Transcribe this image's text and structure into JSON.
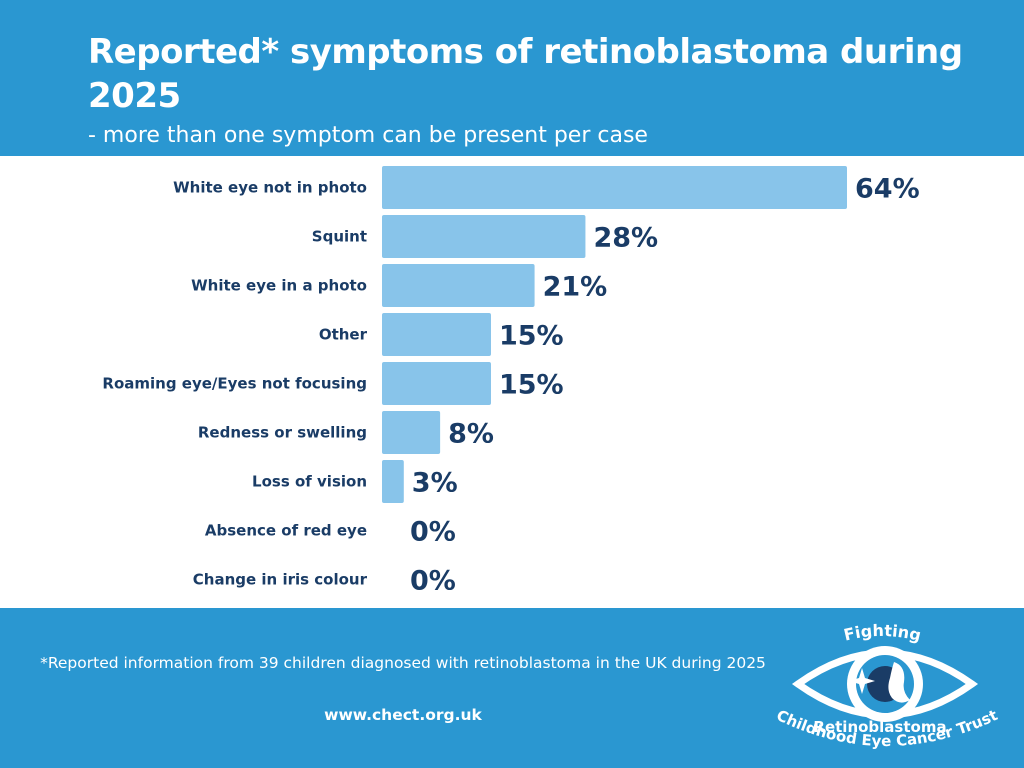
{
  "header": {
    "title": "Reported* symptoms of retinoblastoma during 2025",
    "subtitle": "- more than one symptom can be present per case"
  },
  "chart_data": {
    "type": "bar",
    "orientation": "horizontal",
    "categories": [
      "White eye not in photo",
      "Squint",
      "White eye in a photo",
      "Other",
      "Roaming eye/Eyes not focusing",
      "Redness or swelling",
      "Loss of vision",
      "Absence of red eye",
      "Change in iris colour"
    ],
    "values": [
      64,
      28,
      21,
      15,
      15,
      8,
      3,
      0,
      0
    ],
    "value_labels": [
      "64%",
      "28%",
      "21%",
      "15%",
      "15%",
      "8%",
      "3%",
      "0%",
      "0%"
    ],
    "unit": "%",
    "xlim": [
      0,
      64
    ],
    "grid": false,
    "legend": "none",
    "bar_color": "#88c4ea",
    "label_color": "#1a3c66"
  },
  "footer": {
    "note": "*Reported  information from 39 children diagnosed with retinoblastoma in the UK during 2025",
    "url": "www.chect.org.uk"
  },
  "logo": {
    "top_text": "Fighting",
    "middle_text": "Retinoblastoma",
    "bottom_text": "Childhood Eye Cancer Trust"
  },
  "colors": {
    "brand_blue": "#2a97d1",
    "bar": "#88c4ea",
    "text_dark": "#1a3c66",
    "white": "#ffffff"
  }
}
